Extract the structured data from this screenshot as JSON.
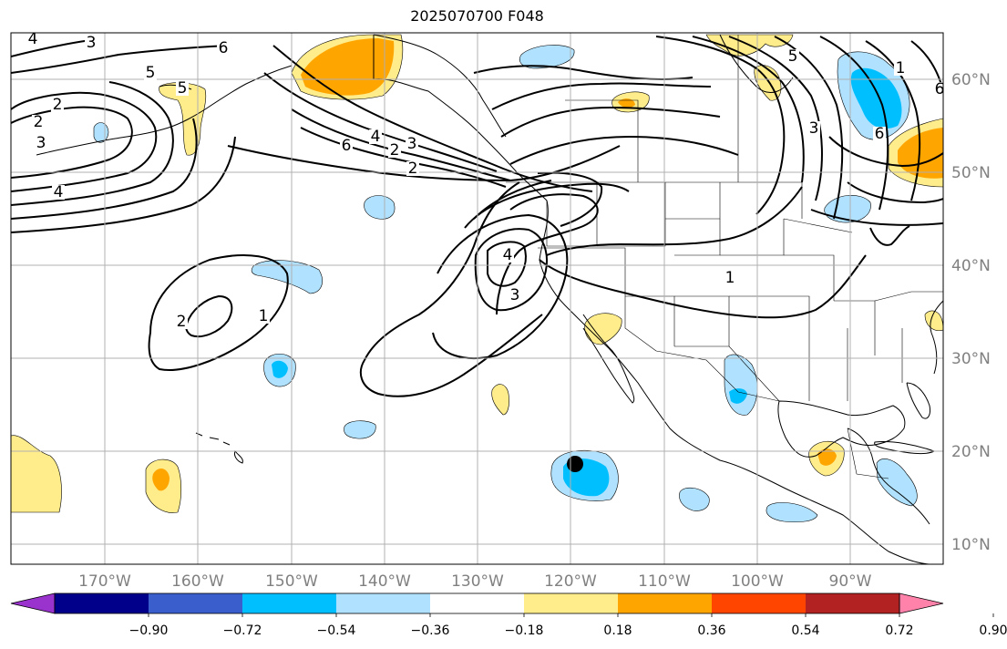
{
  "title": "2025070700 F048",
  "lon_labels": [
    "170°W",
    "160°W",
    "150°W",
    "140°W",
    "130°W",
    "120°W",
    "110°W",
    "100°W",
    "90°W"
  ],
  "lat_labels": [
    "60°N",
    "50°N",
    "40°N",
    "30°N",
    "20°N",
    "10°N"
  ],
  "colorbar": {
    "ticks": [
      "−0.90",
      "−0.72",
      "−0.54",
      "−0.36",
      "−0.18",
      "0.18",
      "0.36",
      "0.54",
      "0.72",
      "0.90"
    ],
    "colors": [
      "#9a32cd",
      "#00008b",
      "#3a5fcd",
      "#00bfff",
      "#b0e2ff",
      "#ffffff",
      "#ffec8b",
      "#ffa500",
      "#ff4500",
      "#b22222",
      "#ff82ab"
    ]
  },
  "contour_labels": [
    "4",
    "3",
    "2",
    "2",
    "3",
    "4",
    "6",
    "5",
    "5",
    "6",
    "4",
    "3",
    "2",
    "2",
    "1",
    "2",
    "4",
    "3",
    "1",
    "5",
    "1",
    "6",
    "6",
    "3"
  ],
  "colors": {
    "land_line": "#000000",
    "grid": "#b0b0b0",
    "axis_text": "#808080"
  }
}
